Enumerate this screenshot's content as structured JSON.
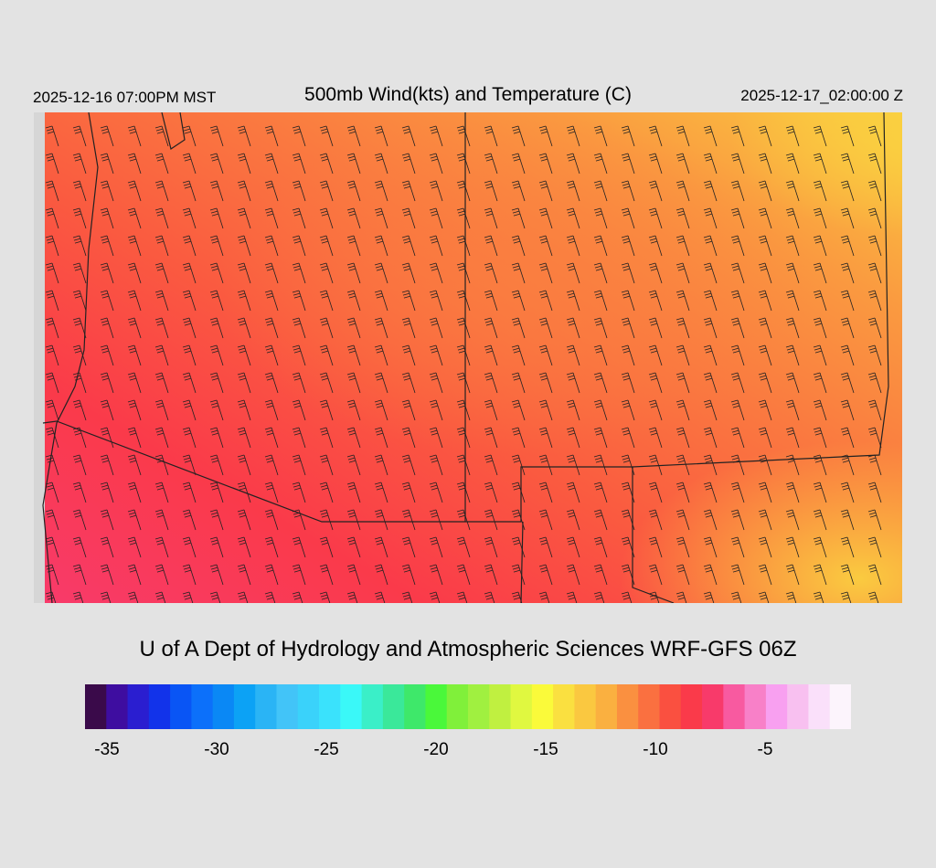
{
  "header": {
    "local_time": "2025-12-16 07:00PM MST",
    "title": "500mb Wind(kts) and Temperature (C)",
    "utc_time": "2025-12-17_02:00:00 Z"
  },
  "credit": "U of A Dept of Hydrology and Atmospheric Sciences WRF-GFS 06Z",
  "legend": {
    "colors": [
      "#3a0a4a",
      "#3e0da0",
      "#2a1ed0",
      "#1233ea",
      "#0955f5",
      "#0c70fa",
      "#0a88f5",
      "#0ca2f5",
      "#2ab4f5",
      "#42c4f8",
      "#3ad2fa",
      "#3ae2fc",
      "#3af8f8",
      "#3aefc8",
      "#3ae89a",
      "#3ee86a",
      "#4af83a",
      "#80f03a",
      "#a0f040",
      "#c0f040",
      "#e0f840",
      "#fafa3a",
      "#fae040",
      "#fac840",
      "#fab040",
      "#fa9040",
      "#fa7040",
      "#fa5040",
      "#fa3a4a",
      "#f83a6a",
      "#f85aa0",
      "#f880c8",
      "#f8a0f0",
      "#f8c0f0",
      "#fae0fa",
      "#fcf4fc"
    ],
    "ticks": [
      "-35",
      "-30",
      "-25",
      "-20",
      "-15",
      "-10",
      "-5"
    ]
  }
}
